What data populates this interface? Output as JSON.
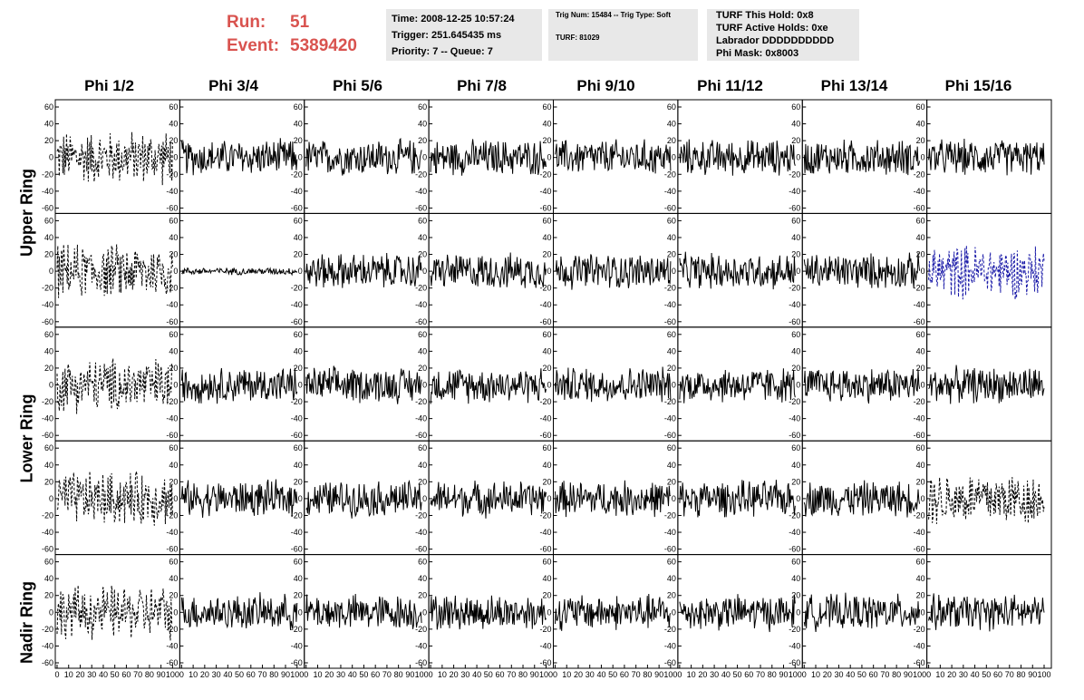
{
  "run": {
    "run_label": "Run:",
    "run_value": "51",
    "event_label": "Event:",
    "event_value": "5389420"
  },
  "time_panel": {
    "time": "Time: 2008-12-25 10:57:24",
    "trigger": "Trigger: 251.645435 ms",
    "priority": "Priority: 7 -- Queue: 7"
  },
  "trig_panel": {
    "trig": "Trig Num: 15484 -- Trig Type: Soft",
    "turf": "TURF: 81029"
  },
  "turf_panel": {
    "this_hold": "TURF This Hold: 0x8",
    "active_holds": "TURF Active Holds: 0xe",
    "labrador": "Labrador DDDDDDDDDD",
    "phi_mask": "Phi Mask: 0x8003"
  },
  "phi_labels": [
    "Phi 1/2",
    "Phi 3/4",
    "Phi 5/6",
    "Phi 7/8",
    "Phi 9/10",
    "Phi 11/12",
    "Phi 13/14",
    "Phi 15/16"
  ],
  "ring_labels": [
    "Upper Ring",
    "Lower Ring",
    "Nadir Ring"
  ],
  "chart_data": {
    "type": "line",
    "rows": 5,
    "cols": 8,
    "xlim": [
      0,
      100
    ],
    "ylim": [
      -60,
      60
    ],
    "y_ticks": [
      "60",
      "40",
      "20",
      "0",
      "-20",
      "-40",
      "-60"
    ],
    "x_ticks": [
      "0",
      "10",
      "20",
      "30",
      "40",
      "50",
      "60",
      "70",
      "80",
      "90",
      "100"
    ],
    "dashed_panels": [
      [
        0,
        0
      ],
      [
        1,
        0
      ],
      [
        2,
        0
      ],
      [
        3,
        0
      ],
      [
        3,
        7
      ],
      [
        4,
        0
      ],
      [
        1,
        7
      ]
    ],
    "blue_panels": [
      [
        1,
        7
      ]
    ],
    "quiet_panels": [
      [
        1,
        1
      ]
    ],
    "colors": {
      "trace": "#000000",
      "blue_trace": "#1a1aa8"
    }
  }
}
